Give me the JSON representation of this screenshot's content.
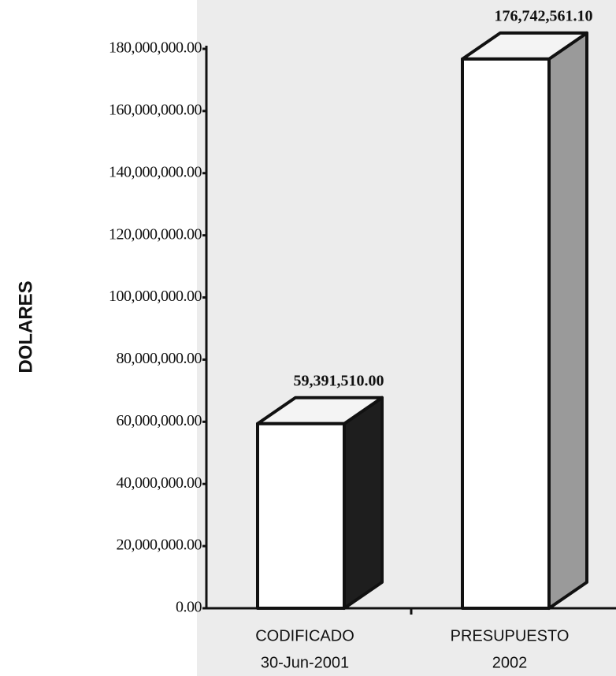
{
  "chart_data": {
    "type": "bar3d",
    "y_label": "DOLARES",
    "categories": [
      [
        "CODIFICADO",
        "30-Jun-2001"
      ],
      [
        "PRESUPUESTO",
        "2002"
      ]
    ],
    "values": [
      59391510,
      176742561.1
    ],
    "value_labels": [
      "59,391,510.00",
      "176,742,561.10"
    ],
    "color": "#ffffff",
    "side_colors": [
      "#1e1e1e",
      "#9a9a9a"
    ],
    "ylim": [
      0,
      180000000
    ],
    "yticks": [
      {
        "value": 0,
        "label": "0.00"
      },
      {
        "value": 20000000,
        "label": "20,000,000.00"
      },
      {
        "value": 40000000,
        "label": "40,000,000.00"
      },
      {
        "value": 60000000,
        "label": "60,000,000.00"
      },
      {
        "value": 80000000,
        "label": "80,000,000.00"
      },
      {
        "value": 100000000,
        "label": "100,000,000.00"
      },
      {
        "value": 120000000,
        "label": "120,000,000.00"
      },
      {
        "value": 140000000,
        "label": "140,000,000.00"
      },
      {
        "value": 160000000,
        "label": "160,000,000.00"
      },
      {
        "value": 180000000,
        "label": "180,000,000.00"
      }
    ],
    "grid": false
  }
}
